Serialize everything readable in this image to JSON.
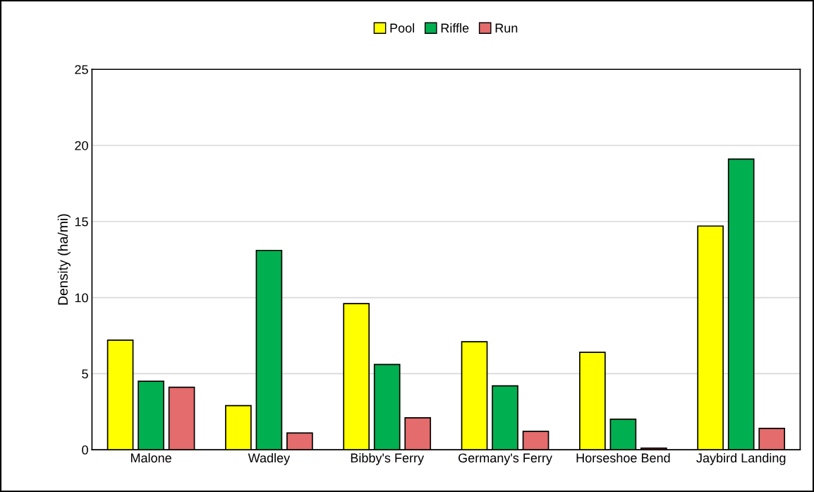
{
  "chart_data": {
    "type": "bar",
    "ylabel": "Density (ha/mi)",
    "categories": [
      "Malone",
      "Wadley",
      "Bibby's Ferry",
      "Germany's Ferry",
      "Horseshoe Bend",
      "Jaybird Landing"
    ],
    "series": [
      {
        "name": "Pool",
        "color": "#ffff00",
        "values": [
          7.2,
          2.9,
          9.6,
          7.1,
          6.4,
          14.7
        ]
      },
      {
        "name": "Riffle",
        "color": "#00b050",
        "values": [
          4.5,
          13.1,
          5.6,
          4.2,
          2.0,
          19.1
        ]
      },
      {
        "name": "Run",
        "color": "#e46c6c",
        "values": [
          4.1,
          1.1,
          2.1,
          1.2,
          0.1,
          1.4
        ]
      }
    ],
    "ylim": [
      0,
      25
    ],
    "yticks": [
      0,
      5,
      10,
      15,
      20,
      25
    ],
    "grid": "y",
    "legend": "top"
  }
}
